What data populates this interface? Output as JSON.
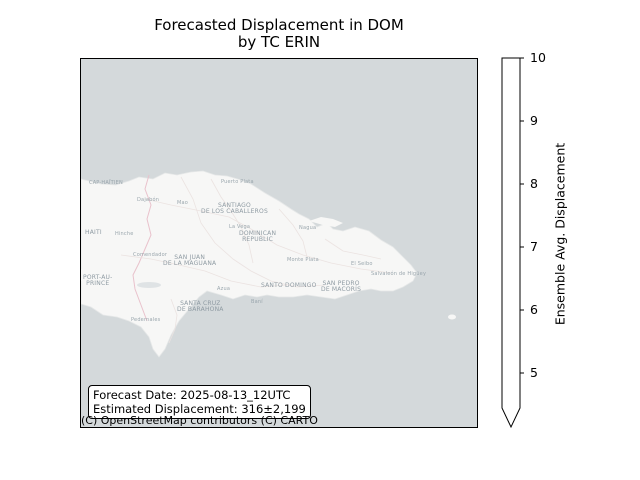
{
  "title": {
    "line1": "Forecasted Displacement in DOM",
    "line2": "by TC ERIN"
  },
  "map": {
    "place_labels": {
      "cap_haitien": "CAP-HAÏTIEN",
      "dajabon": "Dajabón",
      "mao": "Mao",
      "santiago": "SANTIAGO",
      "santiago_2": "DE LOS CABALLEROS",
      "puerto_plata": "Puerto Plata",
      "haiti": "HAITI",
      "hinche": "Hinche",
      "la_vega": "La Vega",
      "dominican": "DOMINICAN",
      "republic": "REPUBLIC",
      "nagua": "Nagua",
      "san_juan": "SAN JUAN",
      "san_juan_2": "DE LA MAGUANA",
      "monte_plata": "Monte Plata",
      "el_seibo": "El Seibo",
      "port_au": "PORT-AU-",
      "prince": "PRINCE",
      "azua": "Azua",
      "santo_domingo": "SANTO DOMINGO",
      "san_pedro": "SAN PEDRO",
      "san_pedro_2": "DE MACORÍS",
      "salvaleon": "Salvaleón de Higüey",
      "santa_cruz": "SANTA CRUZ",
      "santa_cruz_2": "DE BARAHONA",
      "bani": "Baní",
      "pedernales": "Pedernales",
      "comendador": "Comendador"
    },
    "info_box": {
      "forecast_date": "Forecast Date: 2025-08-13_12UTC",
      "estimated_displacement": "Estimated Displacement: 316±2,199"
    },
    "attribution": "(C) OpenStreetMap contributors (C) CARTO"
  },
  "colorbar": {
    "label": "Ensemble Avg. Displacement",
    "ticks": [
      "10",
      "9",
      "8",
      "7",
      "6",
      "5"
    ],
    "extend": "min",
    "fill_color": "#ffffff"
  },
  "colors": {
    "ocean": "#d4d9db",
    "land": "#f7f7f6",
    "roads": "#ebe3e1",
    "border": "#e9c2cc"
  }
}
